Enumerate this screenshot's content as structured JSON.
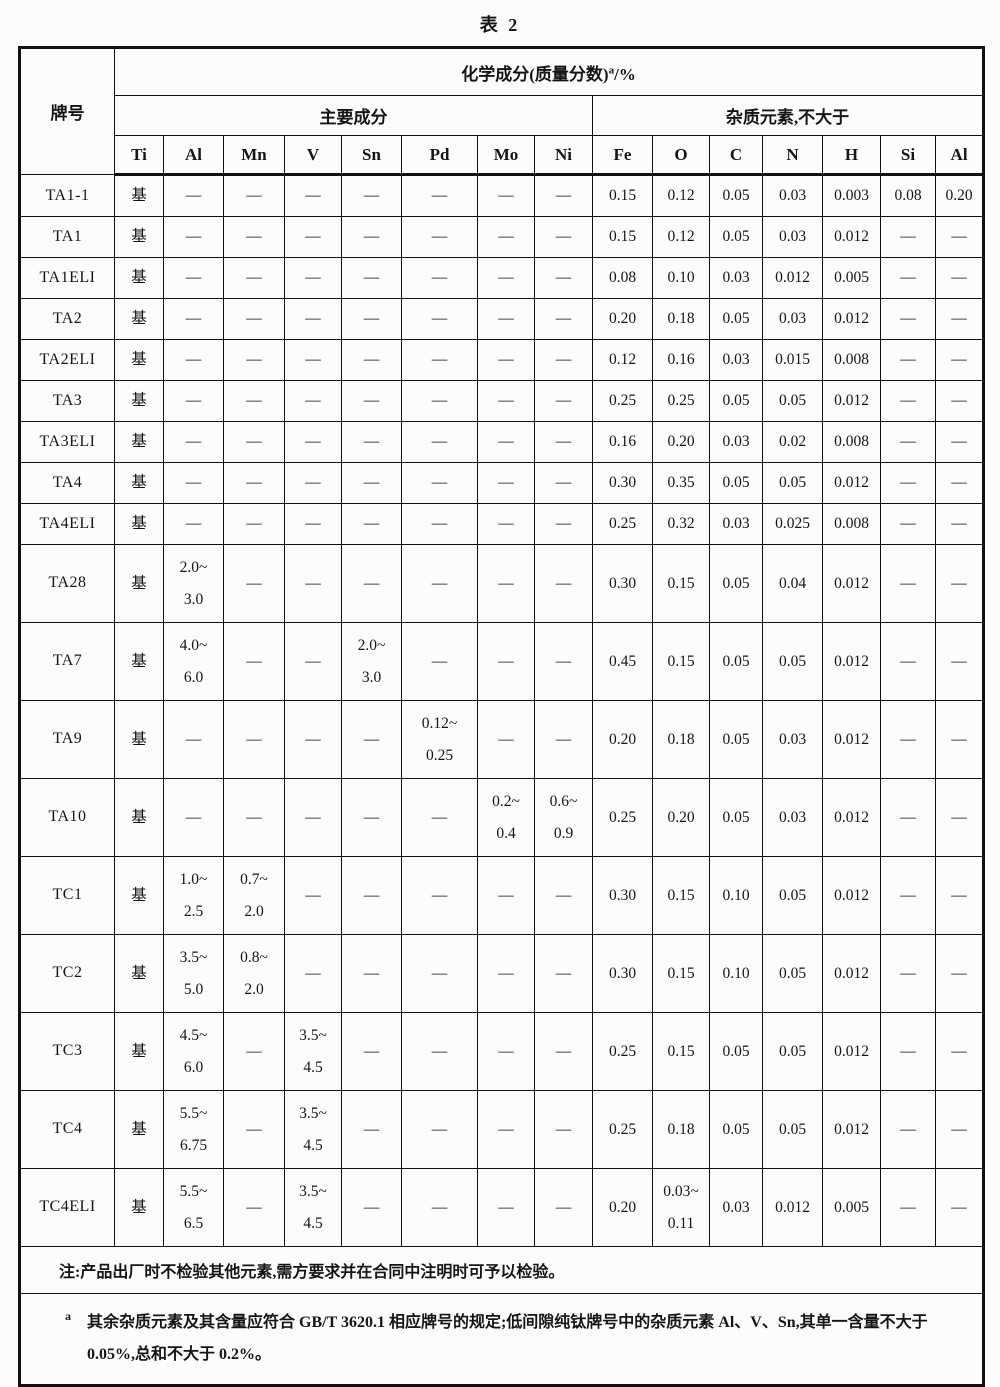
{
  "page": {
    "title": "表 2"
  },
  "colors": {
    "border": "#111111",
    "background": "#fcfcfa",
    "text": "#151515"
  },
  "table": {
    "header": {
      "grade_label": "牌号",
      "composition_prefix": "化学成分(质量分数)",
      "composition_sup": "a",
      "composition_suffix": "/%",
      "main_group": "主要成分",
      "impurity_group": "杂质元素,不大于",
      "element_cols": [
        "Ti",
        "Al",
        "Mn",
        "V",
        "Sn",
        "Pd",
        "Mo",
        "Ni",
        "Fe",
        "O",
        "C",
        "N",
        "H",
        "Si",
        "Al"
      ]
    },
    "rows": [
      {
        "grade": "TA1-1",
        "cells": [
          "基",
          "—",
          "—",
          "—",
          "—",
          "—",
          "—",
          "—",
          "0.15",
          "0.12",
          "0.05",
          "0.03",
          "0.003",
          "0.08",
          "0.20"
        ]
      },
      {
        "grade": "TA1",
        "cells": [
          "基",
          "—",
          "—",
          "—",
          "—",
          "—",
          "—",
          "—",
          "0.15",
          "0.12",
          "0.05",
          "0.03",
          "0.012",
          "—",
          "—"
        ]
      },
      {
        "grade": "TA1ELI",
        "cells": [
          "基",
          "—",
          "—",
          "—",
          "—",
          "—",
          "—",
          "—",
          "0.08",
          "0.10",
          "0.03",
          "0.012",
          "0.005",
          "—",
          "—"
        ]
      },
      {
        "grade": "TA2",
        "cells": [
          "基",
          "—",
          "—",
          "—",
          "—",
          "—",
          "—",
          "—",
          "0.20",
          "0.18",
          "0.05",
          "0.03",
          "0.012",
          "—",
          "—"
        ]
      },
      {
        "grade": "TA2ELI",
        "cells": [
          "基",
          "—",
          "—",
          "—",
          "—",
          "—",
          "—",
          "—",
          "0.12",
          "0.16",
          "0.03",
          "0.015",
          "0.008",
          "—",
          "—"
        ]
      },
      {
        "grade": "TA3",
        "cells": [
          "基",
          "—",
          "—",
          "—",
          "—",
          "—",
          "—",
          "—",
          "0.25",
          "0.25",
          "0.05",
          "0.05",
          "0.012",
          "—",
          "—"
        ]
      },
      {
        "grade": "TA3ELI",
        "cells": [
          "基",
          "—",
          "—",
          "—",
          "—",
          "—",
          "—",
          "—",
          "0.16",
          "0.20",
          "0.03",
          "0.02",
          "0.008",
          "—",
          "—"
        ]
      },
      {
        "grade": "TA4",
        "cells": [
          "基",
          "—",
          "—",
          "—",
          "—",
          "—",
          "—",
          "—",
          "0.30",
          "0.35",
          "0.05",
          "0.05",
          "0.012",
          "—",
          "—"
        ]
      },
      {
        "grade": "TA4ELI",
        "cells": [
          "基",
          "—",
          "—",
          "—",
          "—",
          "—",
          "—",
          "—",
          "0.25",
          "0.32",
          "0.03",
          "0.025",
          "0.008",
          "—",
          "—"
        ]
      },
      {
        "grade": "TA28",
        "cells": [
          "基",
          "2.0~\n3.0",
          "—",
          "—",
          "—",
          "—",
          "—",
          "—",
          "0.30",
          "0.15",
          "0.05",
          "0.04",
          "0.012",
          "—",
          "—"
        ]
      },
      {
        "grade": "TA7",
        "cells": [
          "基",
          "4.0~\n6.0",
          "—",
          "—",
          "2.0~\n3.0",
          "—",
          "—",
          "—",
          "0.45",
          "0.15",
          "0.05",
          "0.05",
          "0.012",
          "—",
          "—"
        ]
      },
      {
        "grade": "TA9",
        "cells": [
          "基",
          "—",
          "—",
          "—",
          "—",
          "0.12~\n0.25",
          "—",
          "—",
          "0.20",
          "0.18",
          "0.05",
          "0.03",
          "0.012",
          "—",
          "—"
        ]
      },
      {
        "grade": "TA10",
        "cells": [
          "基",
          "—",
          "—",
          "—",
          "—",
          "—",
          "0.2~\n0.4",
          "0.6~\n0.9",
          "0.25",
          "0.20",
          "0.05",
          "0.03",
          "0.012",
          "—",
          "—"
        ]
      },
      {
        "grade": "TC1",
        "cells": [
          "基",
          "1.0~\n2.5",
          "0.7~\n2.0",
          "—",
          "—",
          "—",
          "—",
          "—",
          "0.30",
          "0.15",
          "0.10",
          "0.05",
          "0.012",
          "—",
          "—"
        ]
      },
      {
        "grade": "TC2",
        "cells": [
          "基",
          "3.5~\n5.0",
          "0.8~\n2.0",
          "—",
          "—",
          "—",
          "—",
          "—",
          "0.30",
          "0.15",
          "0.10",
          "0.05",
          "0.012",
          "—",
          "—"
        ]
      },
      {
        "grade": "TC3",
        "cells": [
          "基",
          "4.5~\n6.0",
          "—",
          "3.5~\n4.5",
          "—",
          "—",
          "—",
          "—",
          "0.25",
          "0.15",
          "0.05",
          "0.05",
          "0.012",
          "—",
          "—"
        ]
      },
      {
        "grade": "TC4",
        "cells": [
          "基",
          "5.5~\n6.75",
          "—",
          "3.5~\n4.5",
          "—",
          "—",
          "—",
          "—",
          "0.25",
          "0.18",
          "0.05",
          "0.05",
          "0.012",
          "—",
          "—"
        ]
      },
      {
        "grade": "TC4ELI",
        "cells": [
          "基",
          "5.5~\n6.5",
          "—",
          "3.5~\n4.5",
          "—",
          "—",
          "—",
          "—",
          "0.20",
          "0.03~\n0.11",
          "0.03",
          "0.012",
          "0.005",
          "—",
          "—"
        ]
      }
    ],
    "note": "注:产品出厂时不检验其他元素,需方要求并在合同中注明时可予以检验。",
    "footnote": {
      "marker": "a",
      "text": "其余杂质元素及其含量应符合 GB/T 3620.1 相应牌号的规定;低间隙纯钛牌号中的杂质元素 Al、V、Sn,其单一含量不大于 0.05%,总和不大于 0.2%。"
    }
  }
}
